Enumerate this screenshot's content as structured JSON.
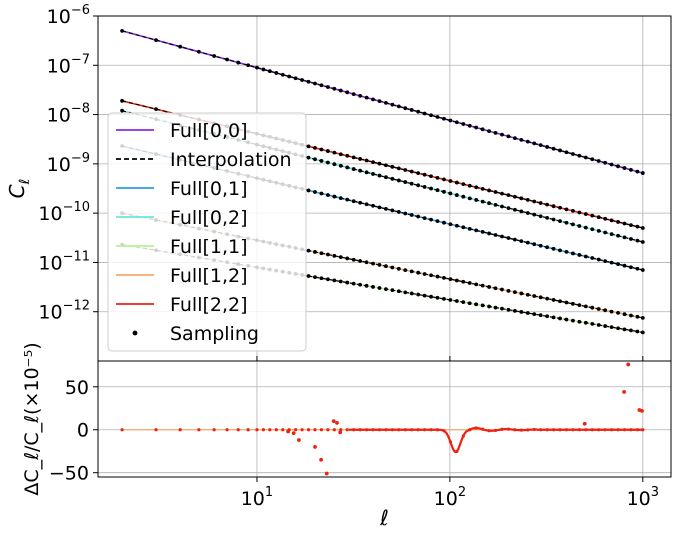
{
  "chart_data": [
    {
      "type": "line",
      "panel": "top",
      "ylabel": "C_ℓ",
      "xscale": "log",
      "yscale": "log",
      "xlim": [
        1.5,
        1400
      ],
      "ylim": [
        1e-13,
        1e-06
      ],
      "grid": true,
      "legend_position": "center-left",
      "x_ticks": [
        10,
        100,
        1000
      ],
      "y_ticks": [
        {
          "value": 1e-06,
          "base": "10",
          "exp": "−6"
        },
        {
          "value": 1e-07,
          "base": "10",
          "exp": "−7"
        },
        {
          "value": 1e-08,
          "base": "10",
          "exp": "−8"
        },
        {
          "value": 1e-09,
          "base": "10",
          "exp": "−9"
        },
        {
          "value": 1e-10,
          "base": "10",
          "exp": "−10"
        },
        {
          "value": 1e-11,
          "base": "10",
          "exp": "−11"
        },
        {
          "value": 1e-12,
          "base": "10",
          "exp": "−12"
        }
      ],
      "series": [
        {
          "name": "Full[0,0]",
          "color": "#8a2be2",
          "style": "solid",
          "x": [
            2,
            1000
          ],
          "y": [
            5e-07,
            6.5e-10
          ]
        },
        {
          "name": "Interpolation",
          "color": "#000000",
          "style": "dashed"
        },
        {
          "name": "Full[0,1]",
          "color": "#2e9ee8",
          "style": "solid",
          "x": [
            2,
            1000
          ],
          "y": [
            2.3e-09,
            7e-12
          ]
        },
        {
          "name": "Full[0,2]",
          "color": "#66e8dc",
          "style": "solid",
          "x": [
            2,
            1000
          ],
          "y": [
            1.2e-08,
            2.6e-11
          ]
        },
        {
          "name": "Full[1,1]",
          "color": "#b4f29a",
          "style": "solid",
          "x": [
            2,
            1000
          ],
          "y": [
            2.3e-11,
            3.8e-13
          ]
        },
        {
          "name": "Full[1,2]",
          "color": "#f4a96e",
          "style": "solid",
          "x": [
            2,
            1000
          ],
          "y": [
            1e-10,
            7.5e-13
          ]
        },
        {
          "name": "Full[2,2]",
          "color": "#ee2211",
          "style": "solid",
          "x": [
            2,
            1000
          ],
          "y": [
            1.9e-08,
            5e-11
          ]
        },
        {
          "name": "Sampling",
          "color": "#000000",
          "style": "markers"
        }
      ]
    },
    {
      "type": "scatter",
      "panel": "bottom",
      "xlabel": "ℓ",
      "ylabel": "ΔC_ℓ/C_ℓ(×10⁻⁵)",
      "xscale": "log",
      "xlim": [
        1.5,
        1400
      ],
      "ylim": [
        -55,
        80
      ],
      "grid": true,
      "x_ticks": [
        {
          "value": 10,
          "base": "10",
          "exp": "1"
        },
        {
          "value": 100,
          "base": "10",
          "exp": "2"
        },
        {
          "value": 1000,
          "base": "10",
          "exp": "3"
        }
      ],
      "y_ticks": [
        50,
        0,
        -50
      ],
      "points": [
        {
          "x": 14.5,
          "y": -2,
          "color": "#ee2211"
        },
        {
          "x": 15.5,
          "y": -4,
          "color": "#ee2211"
        },
        {
          "x": 16.5,
          "y": -12,
          "color": "#ee2211"
        },
        {
          "x": 20,
          "y": -20,
          "color": "#ee2211"
        },
        {
          "x": 21.5,
          "y": -35,
          "color": "#ee2211"
        },
        {
          "x": 23,
          "y": -51,
          "color": "#ee2211"
        },
        {
          "x": 25,
          "y": 10,
          "color": "#ee2211"
        },
        {
          "x": 26,
          "y": 8,
          "color": "#ee2211"
        },
        {
          "x": 27,
          "y": -3,
          "color": "#ee2211"
        },
        {
          "x": 500,
          "y": 7,
          "color": "#ee2211"
        },
        {
          "x": 800,
          "y": 44,
          "color": "#ee2211"
        },
        {
          "x": 840,
          "y": 76,
          "color": "#ee2211"
        },
        {
          "x": 960,
          "y": 23,
          "color": "#ee2211"
        },
        {
          "x": 990,
          "y": 22,
          "color": "#ee2211"
        }
      ]
    }
  ]
}
